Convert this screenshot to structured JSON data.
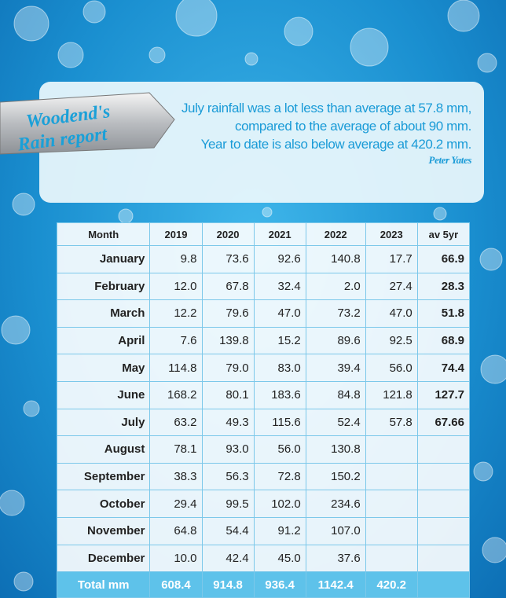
{
  "badge": {
    "lines": [
      "Woodend's",
      "Rain report"
    ]
  },
  "summary": {
    "lines": [
      "July rainfall was a lot less than average at 57.8 mm,",
      "compared to the average of about 90 mm.",
      "Year to date is also below average at 420.2 mm."
    ],
    "author": "Peter Yates"
  },
  "table": {
    "header": [
      "Month",
      "2019",
      "2020",
      "2021",
      "2022",
      "2023",
      "av 5yr"
    ],
    "rows": [
      [
        "January",
        "9.8",
        "73.6",
        "92.6",
        "140.8",
        "17.7",
        "66.9"
      ],
      [
        "February",
        "12.0",
        "67.8",
        "32.4",
        "2.0",
        "27.4",
        "28.3"
      ],
      [
        "March",
        "12.2",
        "79.6",
        "47.0",
        "73.2",
        "47.0",
        "51.8"
      ],
      [
        "April",
        "7.6",
        "139.8",
        "15.2",
        "89.6",
        "92.5",
        "68.9"
      ],
      [
        "May",
        "114.8",
        "79.0",
        "83.0",
        "39.4",
        "56.0",
        "74.4"
      ],
      [
        "June",
        "168.2",
        "80.1",
        "183.6",
        "84.8",
        "121.8",
        "127.7"
      ],
      [
        "July",
        "63.2",
        "49.3",
        "115.6",
        "52.4",
        "57.8",
        "67.66"
      ],
      [
        "August",
        "78.1",
        "93.0",
        "56.0",
        "130.8"
      ],
      [
        "September",
        "38.3",
        "56.3",
        "72.8",
        "150.2"
      ],
      [
        "October",
        "29.4",
        "99.5",
        "102.0",
        "234.6"
      ],
      [
        "November",
        "64.8",
        "54.4",
        "91.2",
        "107.0"
      ],
      [
        "December",
        "10.0",
        "42.4",
        "45.0",
        "37.6"
      ]
    ],
    "total": [
      "Total mm",
      "608.4",
      "914.8",
      "936.4",
      "1142.4",
      "420.2"
    ]
  }
}
